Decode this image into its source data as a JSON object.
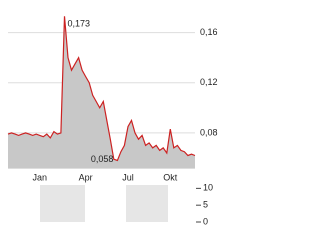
{
  "chart_data": [
    {
      "type": "area",
      "color": "#cc2222",
      "fill": "#c8c8c8",
      "grid": true,
      "categories": [
        null,
        null,
        null,
        null,
        null,
        null,
        null,
        null,
        null,
        "Jan",
        null,
        null,
        null,
        null,
        null,
        null,
        null,
        null,
        null,
        null,
        null,
        null,
        "Apr",
        null,
        null,
        null,
        null,
        null,
        null,
        null,
        null,
        null,
        null,
        null,
        "Jul",
        null,
        null,
        null,
        null,
        null,
        null,
        null,
        null,
        null,
        null,
        null,
        "Okt",
        null,
        null,
        null,
        null,
        null,
        null,
        null
      ],
      "values": [
        0.079,
        0.08,
        0.079,
        0.078,
        0.079,
        0.08,
        0.079,
        0.078,
        0.079,
        0.078,
        0.077,
        0.079,
        0.076,
        0.081,
        0.079,
        0.08,
        0.173,
        0.14,
        0.13,
        0.135,
        0.14,
        0.13,
        0.125,
        0.12,
        0.11,
        0.105,
        0.1,
        0.105,
        0.09,
        0.075,
        0.059,
        0.058,
        0.065,
        0.07,
        0.085,
        0.09,
        0.08,
        0.075,
        0.078,
        0.07,
        0.072,
        0.068,
        0.07,
        0.066,
        0.068,
        0.064,
        0.083,
        0.068,
        0.07,
        0.066,
        0.065,
        0.062,
        0.063,
        0.062
      ],
      "ylim": [
        0.052,
        0.182
      ],
      "yticks": [
        {
          "value": 0.08,
          "label": "0,08"
        },
        {
          "value": 0.12,
          "label": "0,12"
        },
        {
          "value": 0.16,
          "label": "0,16"
        }
      ],
      "annotations": [
        {
          "index": 16,
          "value": 0.173,
          "label": "0,173"
        },
        {
          "index": 31,
          "value": 0.058,
          "label": "0,058"
        }
      ]
    },
    {
      "type": "volume",
      "ylim": [
        0,
        11
      ],
      "yticks": [
        0,
        5,
        10
      ]
    }
  ]
}
